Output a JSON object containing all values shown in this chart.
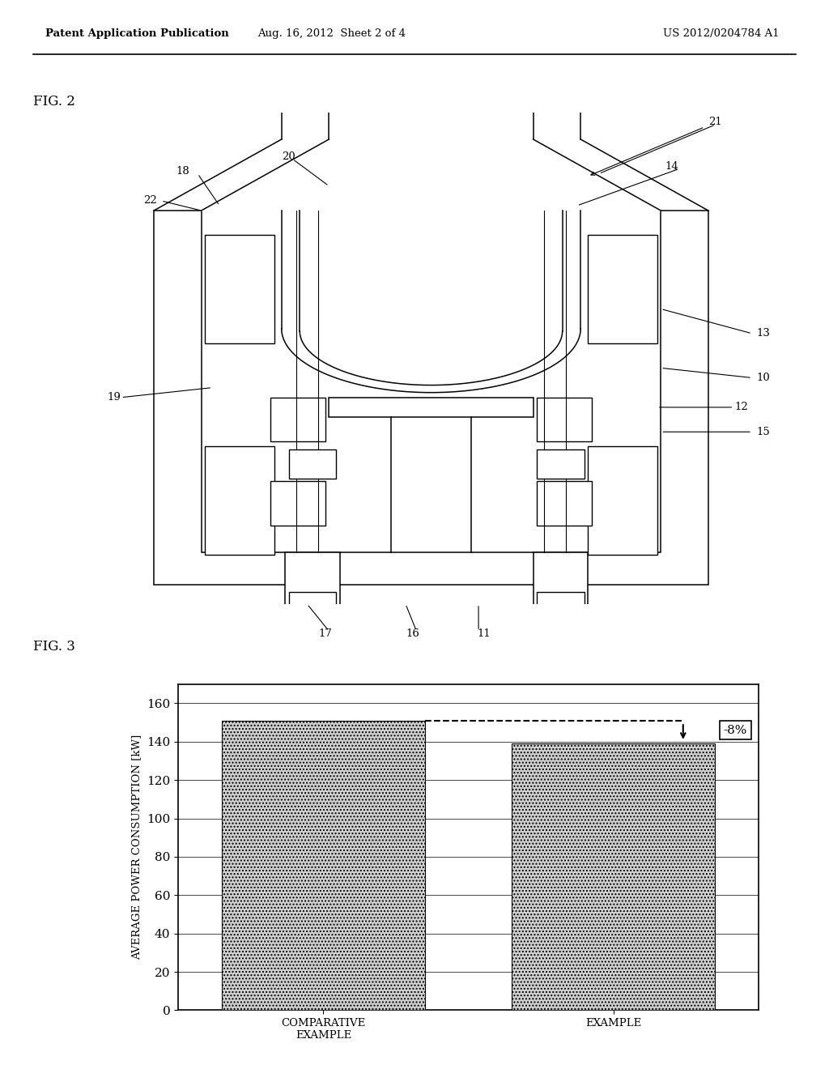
{
  "header_left": "Patent Application Publication",
  "header_mid": "Aug. 16, 2012  Sheet 2 of 4",
  "header_right": "US 2012/0204784 A1",
  "fig2_label": "FIG. 2",
  "fig3_label": "FIG. 3",
  "bar_categories": [
    "COMPARATIVE\nEXAMPLE",
    "EXAMPLE"
  ],
  "bar_values": [
    151,
    139
  ],
  "ylabel": "AVERAGE POWER CONSUMPTION [kW]",
  "yticks": [
    0,
    20,
    40,
    60,
    80,
    100,
    120,
    140,
    160
  ],
  "ylim": [
    0,
    170
  ],
  "annotation": "-8%",
  "comp_val": 151,
  "example_val": 139,
  "background": "#ffffff"
}
